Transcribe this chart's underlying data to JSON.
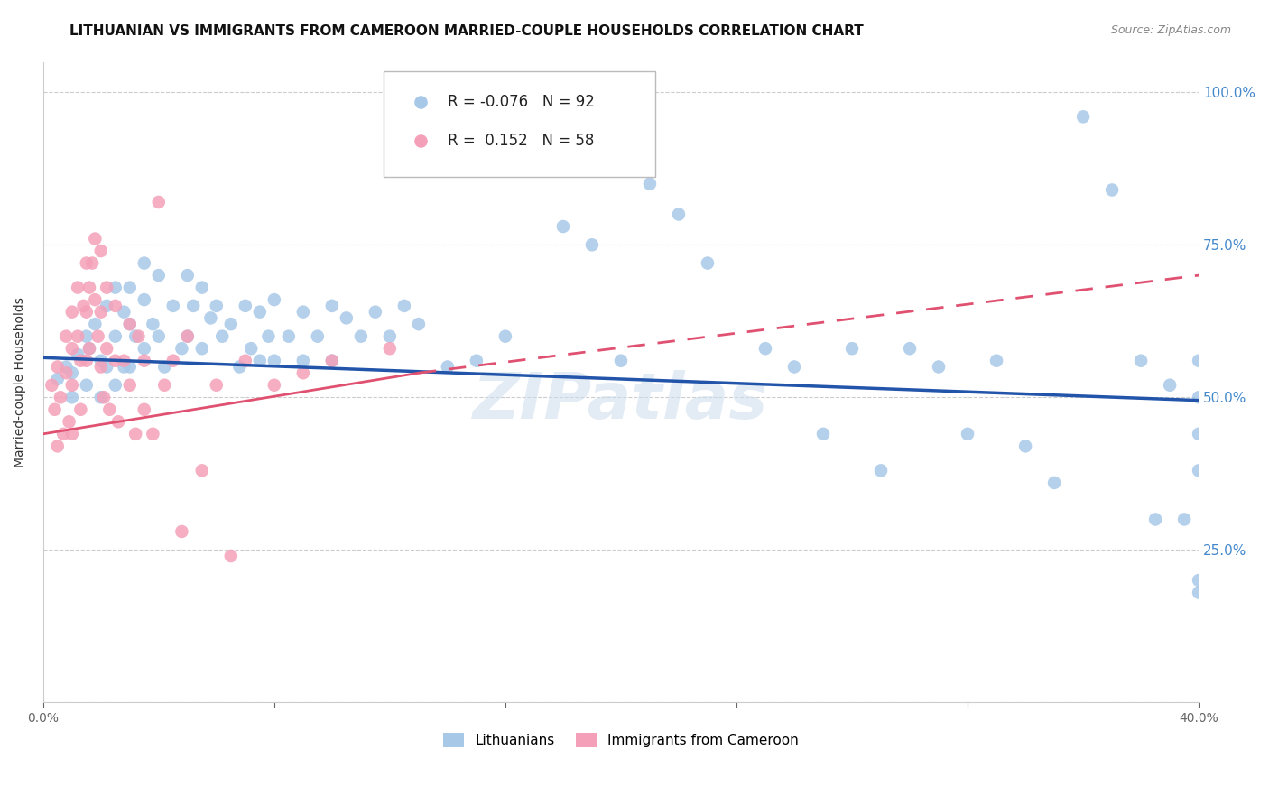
{
  "title": "LITHUANIAN VS IMMIGRANTS FROM CAMEROON MARRIED-COUPLE HOUSEHOLDS CORRELATION CHART",
  "source": "Source: ZipAtlas.com",
  "ylabel": "Married-couple Households",
  "xlim": [
    0.0,
    0.4
  ],
  "ylim": [
    0.0,
    1.05
  ],
  "ytick_labels": [
    "",
    "25.0%",
    "50.0%",
    "75.0%",
    "100.0%"
  ],
  "ytick_values": [
    0.0,
    0.25,
    0.5,
    0.75,
    1.0
  ],
  "xtick_labels": [
    "0.0%",
    "",
    "",
    "",
    "",
    "40.0%"
  ],
  "xtick_values": [
    0.0,
    0.08,
    0.16,
    0.24,
    0.32,
    0.4
  ],
  "legend_blue_label": "Lithuanians",
  "legend_pink_label": "Immigrants from Cameroon",
  "R_blue": -0.076,
  "N_blue": 92,
  "R_pink": 0.152,
  "N_pink": 58,
  "blue_color": "#a8c8e8",
  "blue_line_color": "#2255aa",
  "pink_color": "#f4a0b8",
  "pink_line_color": "#e05070",
  "background_color": "#ffffff",
  "title_fontsize": 11,
  "axis_label_fontsize": 10,
  "tick_fontsize": 10,
  "blue_scatter_x": [
    0.005,
    0.008,
    0.01,
    0.01,
    0.012,
    0.015,
    0.015,
    0.016,
    0.018,
    0.02,
    0.02,
    0.022,
    0.022,
    0.025,
    0.025,
    0.025,
    0.028,
    0.028,
    0.03,
    0.03,
    0.03,
    0.032,
    0.035,
    0.035,
    0.035,
    0.038,
    0.04,
    0.04,
    0.042,
    0.045,
    0.048,
    0.05,
    0.05,
    0.052,
    0.055,
    0.055,
    0.058,
    0.06,
    0.062,
    0.065,
    0.068,
    0.07,
    0.072,
    0.075,
    0.075,
    0.078,
    0.08,
    0.08,
    0.085,
    0.09,
    0.09,
    0.095,
    0.1,
    0.1,
    0.105,
    0.11,
    0.115,
    0.12,
    0.125,
    0.13,
    0.14,
    0.15,
    0.16,
    0.18,
    0.19,
    0.2,
    0.21,
    0.22,
    0.23,
    0.25,
    0.26,
    0.27,
    0.28,
    0.29,
    0.3,
    0.31,
    0.32,
    0.33,
    0.34,
    0.35,
    0.36,
    0.37,
    0.38,
    0.385,
    0.39,
    0.395,
    0.4,
    0.4,
    0.4,
    0.4,
    0.4,
    0.4
  ],
  "blue_scatter_y": [
    0.53,
    0.55,
    0.54,
    0.5,
    0.57,
    0.6,
    0.52,
    0.58,
    0.62,
    0.56,
    0.5,
    0.65,
    0.55,
    0.68,
    0.6,
    0.52,
    0.64,
    0.55,
    0.68,
    0.62,
    0.55,
    0.6,
    0.72,
    0.66,
    0.58,
    0.62,
    0.7,
    0.6,
    0.55,
    0.65,
    0.58,
    0.7,
    0.6,
    0.65,
    0.68,
    0.58,
    0.63,
    0.65,
    0.6,
    0.62,
    0.55,
    0.65,
    0.58,
    0.64,
    0.56,
    0.6,
    0.66,
    0.56,
    0.6,
    0.64,
    0.56,
    0.6,
    0.65,
    0.56,
    0.63,
    0.6,
    0.64,
    0.6,
    0.65,
    0.62,
    0.55,
    0.56,
    0.6,
    0.78,
    0.75,
    0.56,
    0.85,
    0.8,
    0.72,
    0.58,
    0.55,
    0.44,
    0.58,
    0.38,
    0.58,
    0.55,
    0.44,
    0.56,
    0.42,
    0.36,
    0.96,
    0.84,
    0.56,
    0.3,
    0.52,
    0.3,
    0.5,
    0.44,
    0.18,
    0.56,
    0.38,
    0.2
  ],
  "pink_scatter_x": [
    0.003,
    0.004,
    0.005,
    0.005,
    0.006,
    0.007,
    0.008,
    0.008,
    0.009,
    0.01,
    0.01,
    0.01,
    0.01,
    0.012,
    0.012,
    0.013,
    0.013,
    0.014,
    0.015,
    0.015,
    0.015,
    0.016,
    0.016,
    0.017,
    0.018,
    0.018,
    0.019,
    0.02,
    0.02,
    0.02,
    0.021,
    0.022,
    0.022,
    0.023,
    0.025,
    0.025,
    0.026,
    0.028,
    0.03,
    0.03,
    0.032,
    0.033,
    0.035,
    0.035,
    0.038,
    0.04,
    0.042,
    0.045,
    0.048,
    0.05,
    0.055,
    0.06,
    0.065,
    0.07,
    0.08,
    0.09,
    0.1,
    0.12
  ],
  "pink_scatter_y": [
    0.52,
    0.48,
    0.55,
    0.42,
    0.5,
    0.44,
    0.6,
    0.54,
    0.46,
    0.64,
    0.58,
    0.52,
    0.44,
    0.68,
    0.6,
    0.56,
    0.48,
    0.65,
    0.72,
    0.64,
    0.56,
    0.68,
    0.58,
    0.72,
    0.76,
    0.66,
    0.6,
    0.74,
    0.64,
    0.55,
    0.5,
    0.68,
    0.58,
    0.48,
    0.65,
    0.56,
    0.46,
    0.56,
    0.62,
    0.52,
    0.44,
    0.6,
    0.56,
    0.48,
    0.44,
    0.82,
    0.52,
    0.56,
    0.28,
    0.6,
    0.38,
    0.52,
    0.24,
    0.56,
    0.52,
    0.54,
    0.56,
    0.58
  ]
}
